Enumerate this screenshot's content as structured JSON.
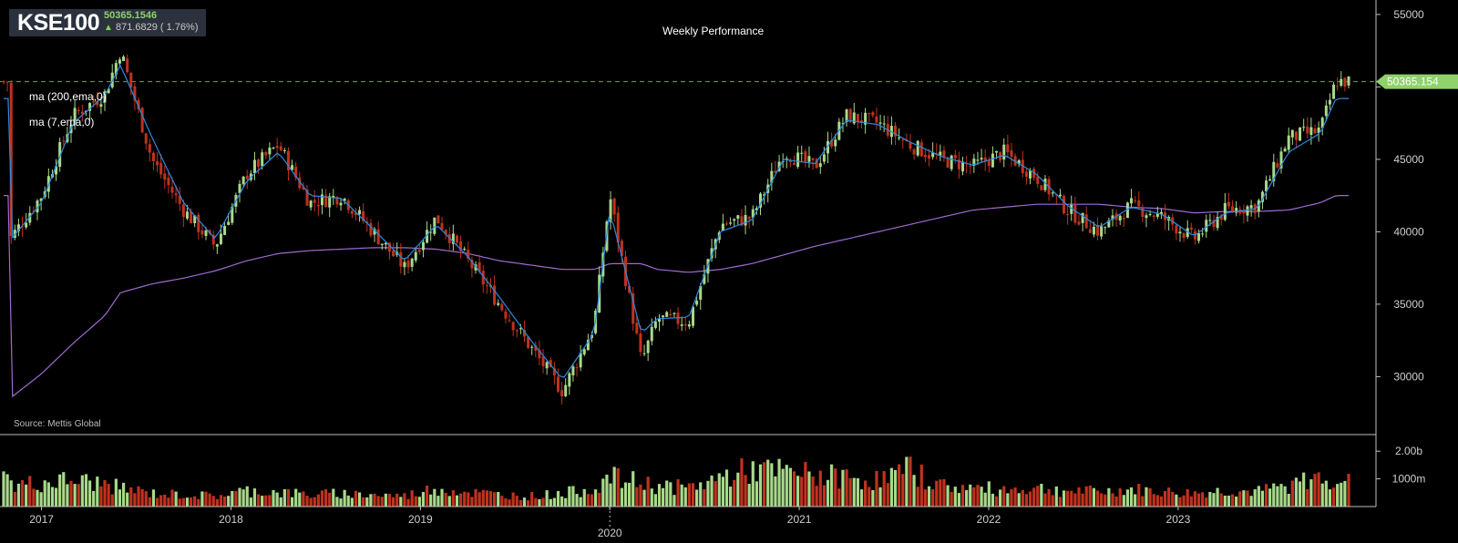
{
  "header": {
    "symbol": "KSE100",
    "price": "50365.1546",
    "change": "871.6829 ( 1.76%)",
    "title": "Weekly Performance"
  },
  "indicators": [
    {
      "label": "ma (200,ema,0)",
      "color": "#a06ad2"
    },
    {
      "label": "ma (7,ema,0)",
      "color": "#2b8be0"
    }
  ],
  "source": "Source: Mettis Global",
  "colors": {
    "up": "#a8d98a",
    "down": "#c0321e",
    "last_price_tag": "#8fd16a",
    "grid_dash": "#6fa05a"
  },
  "chart_data": [
    {
      "type": "candlestick",
      "series_name": "KSE100",
      "last_price_label": "50365.154",
      "last_price": 50365.154,
      "ylim": [
        26000,
        56000
      ],
      "y_ticks": [
        30000,
        35000,
        40000,
        45000,
        50000,
        55000
      ],
      "y_tick_labels": [
        "30000",
        "35000",
        "40000",
        "45000",
        "",
        "55000"
      ],
      "x_labels": [
        "2017",
        "2018",
        "2019",
        "2020",
        "2021",
        "2022",
        "2023"
      ],
      "x": [
        "2016-11",
        "2017-01",
        "2017-03",
        "2017-05",
        "2017-06",
        "2017-08",
        "2017-10",
        "2017-12",
        "2018-02",
        "2018-04",
        "2018-06",
        "2018-08",
        "2018-10",
        "2018-12",
        "2019-02",
        "2019-04",
        "2019-06",
        "2019-08",
        "2019-10",
        "2019-12",
        "2020-01",
        "2020-03",
        "2020-04",
        "2020-06",
        "2020-08",
        "2020-10",
        "2020-12",
        "2021-02",
        "2021-04",
        "2021-06",
        "2021-08",
        "2021-10",
        "2021-12",
        "2022-02",
        "2022-04",
        "2022-06",
        "2022-08",
        "2022-10",
        "2022-12",
        "2023-02",
        "2023-04",
        "2023-06",
        "2023-08",
        "2023-10",
        "2023-11"
      ],
      "close": [
        39500,
        42500,
        48000,
        49500,
        52500,
        45000,
        41500,
        39000,
        44000,
        46000,
        42000,
        42500,
        40000,
        37500,
        41000,
        38000,
        35000,
        32000,
        29000,
        33500,
        42500,
        31000,
        34000,
        33800,
        40500,
        41000,
        45500,
        44500,
        48000,
        47500,
        46000,
        45000,
        44500,
        45500,
        43800,
        41500,
        40000,
        41800,
        41000,
        39500,
        41500,
        41800,
        46500,
        47000,
        50365
      ],
      "ma_7": [
        39400,
        42000,
        47500,
        49400,
        51500,
        46500,
        42000,
        39500,
        43500,
        45500,
        42500,
        42300,
        40200,
        38000,
        40500,
        38300,
        35500,
        32500,
        29800,
        33000,
        41500,
        33000,
        34000,
        34100,
        40000,
        40800,
        45000,
        44700,
        47700,
        47400,
        46200,
        45200,
        44600,
        45300,
        44000,
        41800,
        40300,
        41700,
        41200,
        39700,
        41300,
        41600,
        45500,
        46800,
        49200
      ],
      "ma_200": [
        28500,
        30200,
        32300,
        34200,
        35800,
        36400,
        36800,
        37300,
        38000,
        38500,
        38700,
        38800,
        38900,
        38900,
        38800,
        38500,
        38000,
        37700,
        37400,
        37400,
        37800,
        37800,
        37400,
        37200,
        37400,
        37800,
        38400,
        39000,
        39500,
        40000,
        40500,
        41000,
        41500,
        41700,
        41900,
        41900,
        41900,
        41700,
        41600,
        41300,
        41400,
        41400,
        41500,
        42000,
        42500
      ]
    },
    {
      "type": "bar",
      "series_name": "Volume",
      "ylim": [
        0,
        2500
      ],
      "unit": "millions",
      "y_ticks": [
        1000,
        2000
      ],
      "y_tick_labels": [
        "1000m",
        "2.00b"
      ],
      "x": [
        "2016-11",
        "2017-01",
        "2017-03",
        "2017-05",
        "2017-06",
        "2017-08",
        "2017-10",
        "2017-12",
        "2018-02",
        "2018-04",
        "2018-06",
        "2018-08",
        "2018-10",
        "2018-12",
        "2019-02",
        "2019-04",
        "2019-06",
        "2019-08",
        "2019-10",
        "2019-12",
        "2020-01",
        "2020-03",
        "2020-04",
        "2020-06",
        "2020-08",
        "2020-10",
        "2020-12",
        "2021-02",
        "2021-04",
        "2021-06",
        "2021-08",
        "2021-10",
        "2021-12",
        "2022-02",
        "2022-04",
        "2022-06",
        "2022-08",
        "2022-10",
        "2022-12",
        "2023-02",
        "2023-04",
        "2023-06",
        "2023-08",
        "2023-10",
        "2023-11"
      ],
      "values": [
        800,
        900,
        1000,
        850,
        700,
        500,
        450,
        400,
        600,
        550,
        450,
        500,
        450,
        400,
        700,
        550,
        450,
        400,
        500,
        700,
        1100,
        900,
        800,
        700,
        1100,
        1400,
        1300,
        1200,
        1100,
        1000,
        1400,
        800,
        700,
        650,
        700,
        600,
        550,
        650,
        550,
        500,
        600,
        550,
        800,
        1100,
        1100
      ],
      "direction": [
        "up",
        "up",
        "up",
        "down",
        "up",
        "down",
        "down",
        "down",
        "up",
        "up",
        "down",
        "up",
        "down",
        "down",
        "up",
        "down",
        "down",
        "down",
        "up",
        "up",
        "up",
        "down",
        "up",
        "up",
        "up",
        "up",
        "up",
        "down",
        "up",
        "down",
        "down",
        "down",
        "up",
        "up",
        "down",
        "down",
        "down",
        "up",
        "down",
        "down",
        "up",
        "up",
        "up",
        "up",
        "up"
      ]
    }
  ]
}
